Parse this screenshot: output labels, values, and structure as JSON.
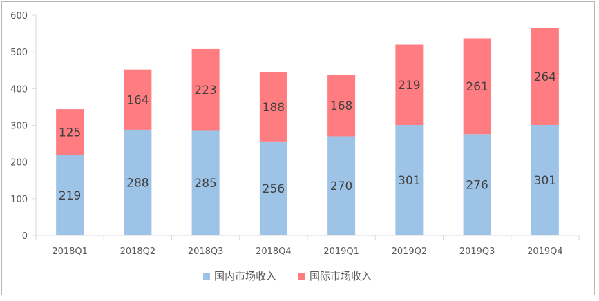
{
  "chart_data": {
    "type": "bar",
    "stacked": true,
    "categories": [
      "2018Q1",
      "2018Q2",
      "2018Q3",
      "2018Q4",
      "2019Q1",
      "2019Q2",
      "2019Q3",
      "2019Q4"
    ],
    "series": [
      {
        "name": "国内市场收入",
        "values": [
          219,
          288,
          285,
          256,
          270,
          301,
          276,
          301
        ],
        "color": "#9dc3e6"
      },
      {
        "name": "国际市场收入",
        "values": [
          125,
          164,
          223,
          188,
          168,
          219,
          261,
          264
        ],
        "color": "#ff7c80"
      }
    ],
    "yticks": [
      0,
      100,
      200,
      300,
      400,
      500,
      600
    ],
    "ylim": [
      0,
      600
    ],
    "grid": false,
    "legend_position": "bottom"
  }
}
